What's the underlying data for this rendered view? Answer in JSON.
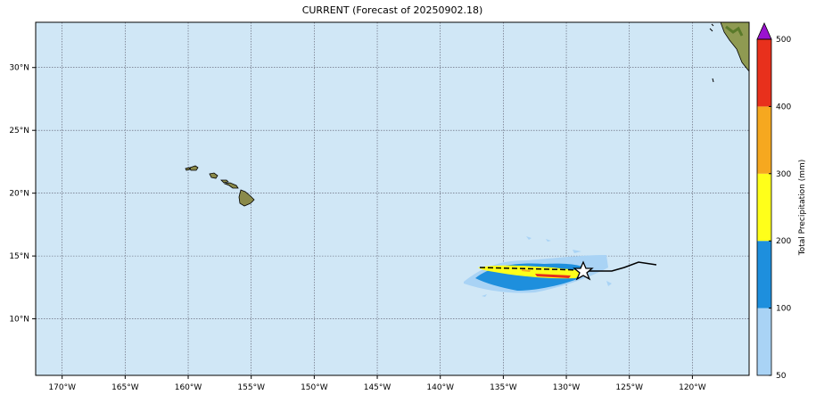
{
  "title": "CURRENT (Forecast of 20250902.18)",
  "map": {
    "lon_range": [
      -172.1,
      -115.5
    ],
    "lat_range": [
      5.5,
      33.6
    ],
    "lon_ticks": [
      {
        "value": -170,
        "label": "170°W"
      },
      {
        "value": -165,
        "label": "165°W"
      },
      {
        "value": -160,
        "label": "160°W"
      },
      {
        "value": -155,
        "label": "155°W"
      },
      {
        "value": -150,
        "label": "150°W"
      },
      {
        "value": -145,
        "label": "145°W"
      },
      {
        "value": -140,
        "label": "140°W"
      },
      {
        "value": -135,
        "label": "135°W"
      },
      {
        "value": -130,
        "label": "130°W"
      },
      {
        "value": -125,
        "label": "125°W"
      },
      {
        "value": -120,
        "label": "120°W"
      }
    ],
    "lat_ticks": [
      {
        "value": 10,
        "label": "10°N"
      },
      {
        "value": 15,
        "label": "15°N"
      },
      {
        "value": 20,
        "label": "20°N"
      },
      {
        "value": 25,
        "label": "25°N"
      },
      {
        "value": 30,
        "label": "30°N"
      }
    ]
  },
  "colorbar": {
    "label": "Total Precipitation (mm)",
    "levels": [
      50,
      100,
      200,
      300,
      400,
      500
    ],
    "colors": [
      "#a9d3f5",
      "#1e8fdd",
      "#ffff1a",
      "#f6a81f",
      "#e8301c"
    ],
    "extend_color": "#9b12cf"
  }
}
